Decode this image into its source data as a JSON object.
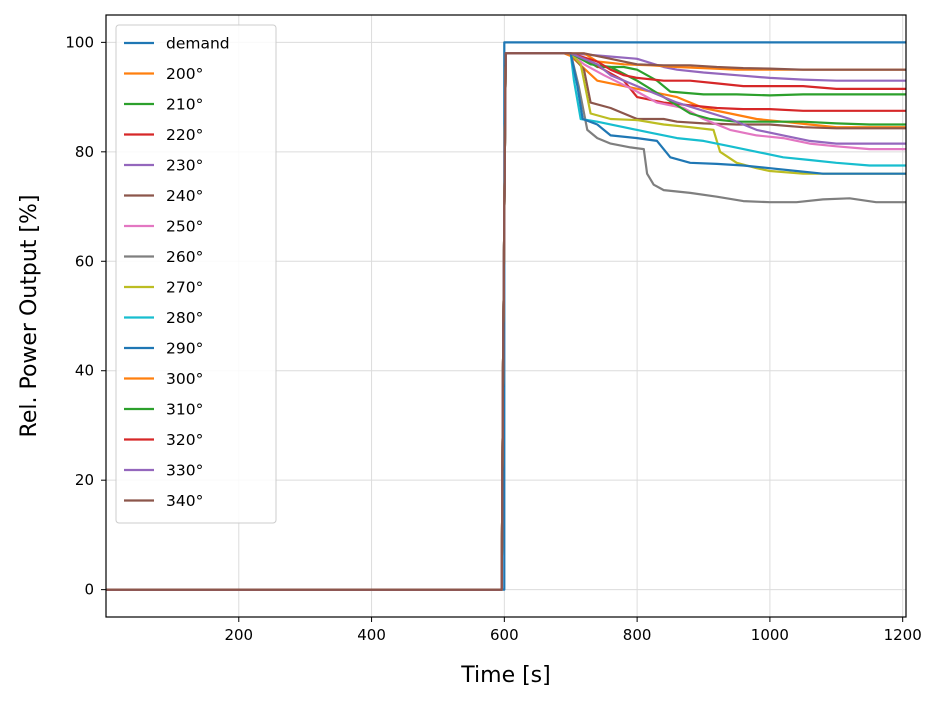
{
  "chart_data": {
    "type": "line",
    "title": "",
    "xlabel": "Time [s]",
    "ylabel": "Rel. Power Output [%]",
    "xlim": [
      0,
      1205
    ],
    "ylim": [
      -5,
      105
    ],
    "xticks": [
      200,
      400,
      600,
      800,
      1000,
      1200
    ],
    "yticks": [
      0,
      20,
      40,
      60,
      80,
      100
    ],
    "grid": true,
    "legend_position": "upper-left",
    "series": [
      {
        "name": "demand",
        "color": "#1f77b4",
        "points": [
          [
            0,
            0
          ],
          [
            600,
            0
          ],
          [
            600,
            100
          ],
          [
            1205,
            100
          ]
        ]
      },
      {
        "name": "200°",
        "color": "#ff7f0e",
        "points": [
          [
            0,
            0
          ],
          [
            596,
            0
          ],
          [
            598,
            40
          ],
          [
            602,
            98
          ],
          [
            650,
            98
          ],
          [
            690,
            98
          ],
          [
            700,
            97.5
          ],
          [
            740,
            93
          ],
          [
            780,
            92
          ],
          [
            820,
            91
          ],
          [
            860,
            90
          ],
          [
            900,
            88
          ],
          [
            940,
            87
          ],
          [
            980,
            86
          ],
          [
            1020,
            85.5
          ],
          [
            1060,
            85
          ],
          [
            1100,
            84.5
          ],
          [
            1150,
            84.5
          ],
          [
            1205,
            84.5
          ]
        ]
      },
      {
        "name": "210°",
        "color": "#2ca02c",
        "points": [
          [
            0,
            0
          ],
          [
            596,
            0
          ],
          [
            598,
            40
          ],
          [
            602,
            98
          ],
          [
            700,
            98
          ],
          [
            720,
            97
          ],
          [
            740,
            95.5
          ],
          [
            780,
            95.5
          ],
          [
            800,
            95
          ],
          [
            830,
            93
          ],
          [
            850,
            91
          ],
          [
            900,
            90.5
          ],
          [
            950,
            90.5
          ],
          [
            1000,
            90.3
          ],
          [
            1050,
            90.5
          ],
          [
            1100,
            90.5
          ],
          [
            1150,
            90.5
          ],
          [
            1205,
            90.5
          ]
        ]
      },
      {
        "name": "220°",
        "color": "#d62728",
        "points": [
          [
            0,
            0
          ],
          [
            596,
            0
          ],
          [
            598,
            40
          ],
          [
            602,
            98
          ],
          [
            700,
            98
          ],
          [
            720,
            97
          ],
          [
            750,
            95
          ],
          [
            780,
            93
          ],
          [
            800,
            90
          ],
          [
            840,
            89
          ],
          [
            880,
            88.5
          ],
          [
            920,
            88
          ],
          [
            960,
            87.8
          ],
          [
            1000,
            87.8
          ],
          [
            1050,
            87.5
          ],
          [
            1100,
            87.5
          ],
          [
            1150,
            87.5
          ],
          [
            1205,
            87.5
          ]
        ]
      },
      {
        "name": "230°",
        "color": "#9467bd",
        "points": [
          [
            0,
            0
          ],
          [
            596,
            0
          ],
          [
            598,
            40
          ],
          [
            602,
            98
          ],
          [
            700,
            98
          ],
          [
            750,
            97.5
          ],
          [
            800,
            97
          ],
          [
            840,
            95.5
          ],
          [
            860,
            95
          ],
          [
            900,
            94.5
          ],
          [
            950,
            94
          ],
          [
            1000,
            93.5
          ],
          [
            1050,
            93.2
          ],
          [
            1100,
            93
          ],
          [
            1150,
            93
          ],
          [
            1205,
            93
          ]
        ]
      },
      {
        "name": "240°",
        "color": "#8c564b",
        "points": [
          [
            0,
            0
          ],
          [
            596,
            0
          ],
          [
            598,
            40
          ],
          [
            602,
            98
          ],
          [
            700,
            98
          ],
          [
            720,
            95
          ],
          [
            730,
            89
          ],
          [
            760,
            88
          ],
          [
            800,
            86
          ],
          [
            840,
            86
          ],
          [
            860,
            85.5
          ],
          [
            900,
            85.2
          ],
          [
            950,
            85
          ],
          [
            1000,
            85
          ],
          [
            1050,
            84.5
          ],
          [
            1100,
            84.3
          ],
          [
            1150,
            84.3
          ],
          [
            1205,
            84.3
          ]
        ]
      },
      {
        "name": "250°",
        "color": "#e377c2",
        "points": [
          [
            0,
            0
          ],
          [
            596,
            0
          ],
          [
            598,
            40
          ],
          [
            602,
            98
          ],
          [
            700,
            98
          ],
          [
            720,
            96
          ],
          [
            750,
            94
          ],
          [
            800,
            91
          ],
          [
            830,
            89
          ],
          [
            870,
            88
          ],
          [
            900,
            86
          ],
          [
            940,
            84
          ],
          [
            980,
            83
          ],
          [
            1020,
            82.5
          ],
          [
            1060,
            81.5
          ],
          [
            1100,
            81
          ],
          [
            1150,
            80.5
          ],
          [
            1205,
            80.5
          ]
        ]
      },
      {
        "name": "260°",
        "color": "#7f7f7f",
        "points": [
          [
            0,
            0
          ],
          [
            596,
            0
          ],
          [
            598,
            40
          ],
          [
            602,
            98
          ],
          [
            700,
            98
          ],
          [
            712,
            92
          ],
          [
            725,
            84
          ],
          [
            740,
            82.5
          ],
          [
            760,
            81.5
          ],
          [
            790,
            80.8
          ],
          [
            810,
            80.5
          ],
          [
            815,
            76
          ],
          [
            825,
            74
          ],
          [
            840,
            73
          ],
          [
            880,
            72.5
          ],
          [
            920,
            71.8
          ],
          [
            960,
            71
          ],
          [
            1000,
            70.8
          ],
          [
            1040,
            70.8
          ],
          [
            1080,
            71.3
          ],
          [
            1120,
            71.5
          ],
          [
            1160,
            70.8
          ],
          [
            1205,
            70.8
          ]
        ]
      },
      {
        "name": "270°",
        "color": "#bcbd22",
        "points": [
          [
            0,
            0
          ],
          [
            596,
            0
          ],
          [
            598,
            40
          ],
          [
            602,
            98
          ],
          [
            700,
            98
          ],
          [
            715,
            96
          ],
          [
            730,
            87
          ],
          [
            760,
            86
          ],
          [
            800,
            85.8
          ],
          [
            840,
            85
          ],
          [
            880,
            84.5
          ],
          [
            915,
            84
          ],
          [
            925,
            80
          ],
          [
            950,
            78
          ],
          [
            980,
            77
          ],
          [
            1000,
            76.5
          ],
          [
            1050,
            76
          ],
          [
            1100,
            76
          ],
          [
            1150,
            76
          ],
          [
            1205,
            76
          ]
        ]
      },
      {
        "name": "280°",
        "color": "#17becf",
        "points": [
          [
            0,
            0
          ],
          [
            596,
            0
          ],
          [
            598,
            40
          ],
          [
            602,
            98
          ],
          [
            700,
            98
          ],
          [
            705,
            93
          ],
          [
            715,
            86
          ],
          [
            740,
            85.5
          ],
          [
            780,
            84.5
          ],
          [
            820,
            83.5
          ],
          [
            860,
            82.5
          ],
          [
            900,
            82
          ],
          [
            940,
            81
          ],
          [
            980,
            80
          ],
          [
            1020,
            79
          ],
          [
            1060,
            78.5
          ],
          [
            1100,
            78
          ],
          [
            1150,
            77.5
          ],
          [
            1205,
            77.5
          ]
        ]
      },
      {
        "name": "290°",
        "color": "#1f77b4",
        "points": [
          [
            0,
            0
          ],
          [
            596,
            0
          ],
          [
            598,
            40
          ],
          [
            602,
            98
          ],
          [
            700,
            98
          ],
          [
            710,
            92
          ],
          [
            718,
            86
          ],
          [
            740,
            85
          ],
          [
            760,
            83
          ],
          [
            800,
            82.5
          ],
          [
            830,
            82
          ],
          [
            850,
            79
          ],
          [
            880,
            78
          ],
          [
            920,
            77.8
          ],
          [
            960,
            77.5
          ],
          [
            1000,
            77
          ],
          [
            1040,
            76.5
          ],
          [
            1080,
            76
          ],
          [
            1120,
            76
          ],
          [
            1150,
            76
          ],
          [
            1205,
            76
          ]
        ]
      },
      {
        "name": "300°",
        "color": "#ff7f0e",
        "points": [
          [
            0,
            0
          ],
          [
            596,
            0
          ],
          [
            598,
            40
          ],
          [
            602,
            98
          ],
          [
            720,
            98
          ],
          [
            740,
            96.5
          ],
          [
            780,
            96
          ],
          [
            820,
            95.8
          ],
          [
            860,
            95.5
          ],
          [
            900,
            95.3
          ],
          [
            950,
            95
          ],
          [
            1000,
            95
          ],
          [
            1050,
            95
          ],
          [
            1100,
            95
          ],
          [
            1150,
            95
          ],
          [
            1205,
            95
          ]
        ]
      },
      {
        "name": "310°",
        "color": "#2ca02c",
        "points": [
          [
            0,
            0
          ],
          [
            596,
            0
          ],
          [
            598,
            40
          ],
          [
            602,
            98
          ],
          [
            700,
            98
          ],
          [
            730,
            96
          ],
          [
            760,
            95.5
          ],
          [
            800,
            93
          ],
          [
            840,
            90
          ],
          [
            880,
            87
          ],
          [
            910,
            86
          ],
          [
            950,
            85.5
          ],
          [
            1000,
            85.5
          ],
          [
            1050,
            85.5
          ],
          [
            1100,
            85.2
          ],
          [
            1150,
            85
          ],
          [
            1205,
            85
          ]
        ]
      },
      {
        "name": "320°",
        "color": "#d62728",
        "points": [
          [
            0,
            0
          ],
          [
            596,
            0
          ],
          [
            598,
            40
          ],
          [
            602,
            98
          ],
          [
            700,
            98
          ],
          [
            740,
            96.5
          ],
          [
            760,
            95
          ],
          [
            780,
            94
          ],
          [
            800,
            93.5
          ],
          [
            840,
            93
          ],
          [
            880,
            93
          ],
          [
            920,
            92.5
          ],
          [
            960,
            92
          ],
          [
            1000,
            92
          ],
          [
            1050,
            92
          ],
          [
            1100,
            91.5
          ],
          [
            1150,
            91.5
          ],
          [
            1205,
            91.5
          ]
        ]
      },
      {
        "name": "330°",
        "color": "#9467bd",
        "points": [
          [
            0,
            0
          ],
          [
            596,
            0
          ],
          [
            598,
            40
          ],
          [
            602,
            98
          ],
          [
            700,
            98
          ],
          [
            740,
            96
          ],
          [
            760,
            94
          ],
          [
            790,
            92.5
          ],
          [
            820,
            91
          ],
          [
            860,
            89
          ],
          [
            900,
            87.5
          ],
          [
            940,
            86
          ],
          [
            980,
            84
          ],
          [
            1020,
            83
          ],
          [
            1060,
            82
          ],
          [
            1100,
            81.5
          ],
          [
            1150,
            81.5
          ],
          [
            1205,
            81.5
          ]
        ]
      },
      {
        "name": "340°",
        "color": "#8c564b",
        "points": [
          [
            0,
            0
          ],
          [
            596,
            0
          ],
          [
            598,
            40
          ],
          [
            602,
            98
          ],
          [
            720,
            98
          ],
          [
            760,
            97
          ],
          [
            800,
            96
          ],
          [
            840,
            95.8
          ],
          [
            880,
            95.8
          ],
          [
            920,
            95.5
          ],
          [
            960,
            95.3
          ],
          [
            1000,
            95.2
          ],
          [
            1050,
            95
          ],
          [
            1100,
            95
          ],
          [
            1150,
            95
          ],
          [
            1205,
            95
          ]
        ]
      }
    ]
  }
}
